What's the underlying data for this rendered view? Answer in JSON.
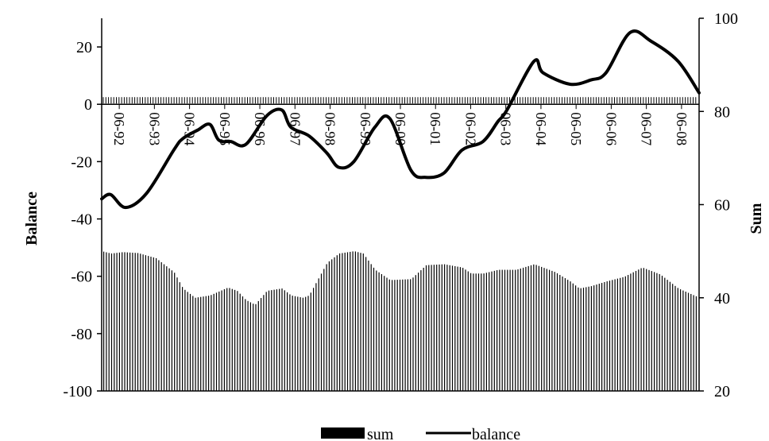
{
  "chart_data": {
    "type": "bar+line",
    "title": "",
    "ylabel": "Balance",
    "y2label": "Sum",
    "ylim": [
      -100,
      30
    ],
    "y2lim": [
      20,
      100
    ],
    "yticks": [
      "20",
      "0",
      "-20",
      "-40",
      "-60",
      "-80",
      "-100"
    ],
    "y2ticks": [
      "100",
      "80",
      "60",
      "40",
      "20"
    ],
    "x_tick_labels": [
      "06-92",
      "06-93",
      "06-94",
      "06-95",
      "06-96",
      "06-97",
      "06-98",
      "06-99",
      "06-00",
      "06-01",
      "06-02",
      "06-03",
      "06-04",
      "06-05",
      "06-06",
      "06-07",
      "06-08"
    ],
    "x_start": "1992-06",
    "x_end": "2009-01",
    "legend": {
      "position": "bottom-center",
      "items": [
        "sum",
        "balance"
      ]
    },
    "series": [
      {
        "name": "sum",
        "type": "bar",
        "axis": "right",
        "points": [
          [
            "1992-06",
            50
          ],
          [
            "1992-09",
            49.5
          ],
          [
            "1993-01",
            49.8
          ],
          [
            "1993-06",
            49.6
          ],
          [
            "1993-12",
            48.5
          ],
          [
            "1994-06",
            45.5
          ],
          [
            "1994-09",
            42
          ],
          [
            "1995-01",
            40
          ],
          [
            "1995-06",
            40.5
          ],
          [
            "1995-12",
            42.2
          ],
          [
            "1996-03",
            41.5
          ],
          [
            "1996-06",
            39.5
          ],
          [
            "1996-09",
            38.5
          ],
          [
            "1997-01",
            41.5
          ],
          [
            "1997-06",
            42
          ],
          [
            "1997-09",
            40.5
          ],
          [
            "1998-01",
            40
          ],
          [
            "1998-03",
            40.5
          ],
          [
            "1998-06",
            44
          ],
          [
            "1998-09",
            47.5
          ],
          [
            "1999-01",
            49.5
          ],
          [
            "1999-06",
            50
          ],
          [
            "1999-09",
            49.5
          ],
          [
            "2000-01",
            46
          ],
          [
            "2000-06",
            43.8
          ],
          [
            "2001-01",
            44
          ],
          [
            "2001-06",
            47
          ],
          [
            "2001-12",
            47.2
          ],
          [
            "2002-06",
            46.5
          ],
          [
            "2002-09",
            45.2
          ],
          [
            "2003-01",
            45.2
          ],
          [
            "2003-06",
            46
          ],
          [
            "2003-12",
            46
          ],
          [
            "2004-06",
            47.2
          ],
          [
            "2005-01",
            45.5
          ],
          [
            "2005-06",
            43.5
          ],
          [
            "2005-09",
            42
          ],
          [
            "2006-01",
            42.5
          ],
          [
            "2006-06",
            43.5
          ],
          [
            "2006-12",
            44.5
          ],
          [
            "2007-06",
            46.5
          ],
          [
            "2007-12",
            45
          ],
          [
            "2008-06",
            42
          ],
          [
            "2009-01",
            40
          ]
        ]
      },
      {
        "name": "balance",
        "type": "line",
        "axis": "left",
        "points": [
          [
            "1992-06",
            -33
          ],
          [
            "1992-09",
            -31.5
          ],
          [
            "1993-02",
            -36
          ],
          [
            "1993-09",
            -31
          ],
          [
            "1994-06",
            -16
          ],
          [
            "1994-09",
            -12
          ],
          [
            "1995-02",
            -9
          ],
          [
            "1995-06",
            -7
          ],
          [
            "1995-09",
            -12.5
          ],
          [
            "1996-01",
            -13
          ],
          [
            "1996-06",
            -14
          ],
          [
            "1997-01",
            -4
          ],
          [
            "1997-06",
            -2
          ],
          [
            "1997-09",
            -8
          ],
          [
            "1998-03",
            -11
          ],
          [
            "1998-09",
            -17
          ],
          [
            "1999-01",
            -22
          ],
          [
            "1999-06",
            -20
          ],
          [
            "2000-01",
            -8
          ],
          [
            "2000-06",
            -5
          ],
          [
            "2001-01",
            -23
          ],
          [
            "2001-06",
            -25.5
          ],
          [
            "2001-12",
            -24
          ],
          [
            "2002-06",
            -16
          ],
          [
            "2003-01",
            -13
          ],
          [
            "2003-06",
            -6
          ],
          [
            "2003-09",
            -2
          ],
          [
            "2004-06",
            15
          ],
          [
            "2004-09",
            11
          ],
          [
            "2005-06",
            7
          ],
          [
            "2006-01",
            8.5
          ],
          [
            "2006-06",
            11
          ],
          [
            "2007-02",
            25
          ],
          [
            "2007-09",
            22
          ],
          [
            "2008-06",
            15
          ],
          [
            "2009-01",
            4
          ]
        ]
      }
    ]
  }
}
